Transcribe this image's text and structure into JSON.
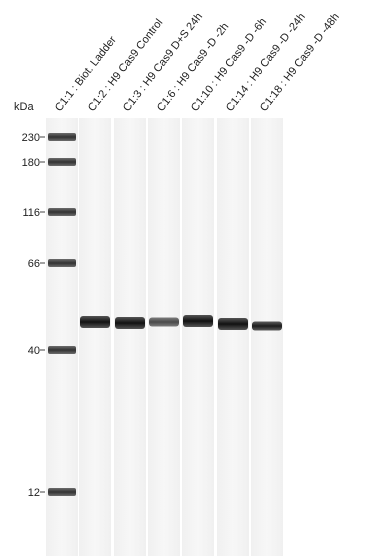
{
  "unit_label": "kDa",
  "markers": [
    "230",
    "180",
    "116",
    "66",
    "40",
    "12"
  ],
  "lanes": [
    "C1:1 : Biot. Ladder",
    "C1:2 : H9 Cas9 Control",
    "C1:3 : H9 Cas9 D+S 24h",
    "C1:6 : H9 Cas9 -D -2h",
    "C1:10 : H9 Cas9 -D -6h",
    "C1:14 : H9 Cas9 -D -24h",
    "C1:18 : H9 Cas9 -D -48h"
  ]
}
